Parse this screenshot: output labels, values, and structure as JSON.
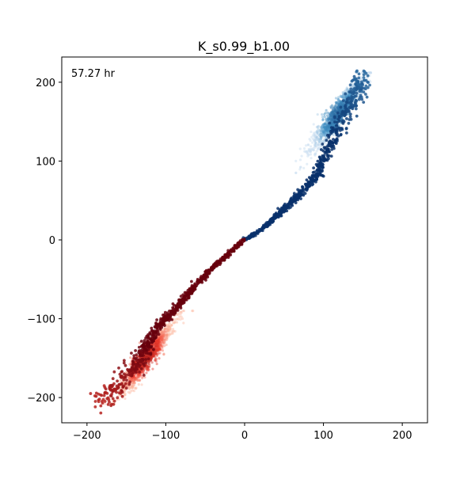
{
  "chart_data": {
    "type": "scatter",
    "title": "K_s0.99_b1.00",
    "annotation": "57.27 hr",
    "xlabel": "",
    "ylabel": "",
    "xlim": [
      -232,
      232
    ],
    "ylim": [
      -232,
      232
    ],
    "xticks": [
      -200,
      -100,
      0,
      100,
      200
    ],
    "yticks": [
      -200,
      -100,
      0,
      100,
      200
    ],
    "xtick_labels": [
      "−200",
      "−100",
      "0",
      "100",
      "200"
    ],
    "ytick_labels": [
      "−200",
      "−100",
      "0",
      "100",
      "200"
    ],
    "grid": false,
    "legend": "none",
    "colors": {
      "blue_dark": "#08306b",
      "blue_mid": "#4292c6",
      "blue_light": "#c6dbef",
      "red_dark": "#67000d",
      "red_mid": "#ef3b2c",
      "red_light": "#fcbba1"
    },
    "series": [
      {
        "color_map": "Blues",
        "trajectory": [
          [
            0,
            0
          ],
          [
            20,
            12
          ],
          [
            40,
            30
          ],
          [
            60,
            48
          ],
          [
            75,
            62
          ],
          [
            90,
            80
          ],
          [
            100,
            100
          ],
          [
            110,
            125
          ],
          [
            125,
            155
          ],
          [
            140,
            185
          ],
          [
            150,
            208
          ]
        ],
        "cloud": {
          "center": [
            118,
            160
          ],
          "x_range": [
            65,
            160
          ],
          "y_range": [
            85,
            212
          ]
        }
      },
      {
        "color_map": "Reds",
        "trajectory": [
          [
            0,
            0
          ],
          [
            -20,
            -17
          ],
          [
            -40,
            -35
          ],
          [
            -60,
            -55
          ],
          [
            -80,
            -78
          ],
          [
            -95,
            -95
          ],
          [
            -110,
            -112
          ],
          [
            -125,
            -135
          ],
          [
            -140,
            -160
          ],
          [
            -160,
            -185
          ],
          [
            -180,
            -202
          ]
        ],
        "cloud": {
          "center": [
            -125,
            -150
          ],
          "x_range": [
            -195,
            -65
          ],
          "y_range": [
            -208,
            -90
          ]
        }
      }
    ]
  }
}
